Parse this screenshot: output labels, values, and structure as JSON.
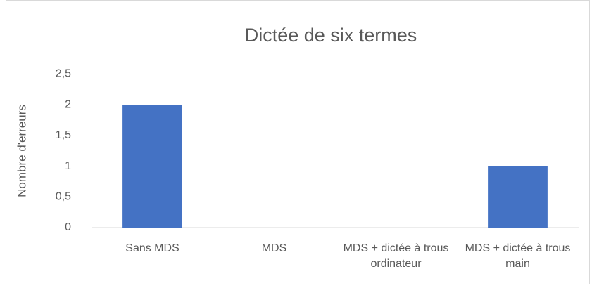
{
  "chart_data": {
    "type": "bar",
    "title": "Dictée de six termes",
    "y_label": "Nombre d'erreurs",
    "categories": [
      "Sans MDS",
      "MDS",
      "MDS + dictée à trous ordinateur",
      "MDS + dictée à trous main"
    ],
    "values": [
      2,
      0,
      0,
      1
    ],
    "color": "#4472c4",
    "ylim": [
      0,
      2.5
    ],
    "yticks": [
      0,
      {
        "value": 0.5,
        "label": "0,5"
      },
      1,
      {
        "value": 1.5,
        "label": "1,5"
      },
      2,
      {
        "value": 2.5,
        "label": "2,5"
      }
    ],
    "grid": false
  }
}
